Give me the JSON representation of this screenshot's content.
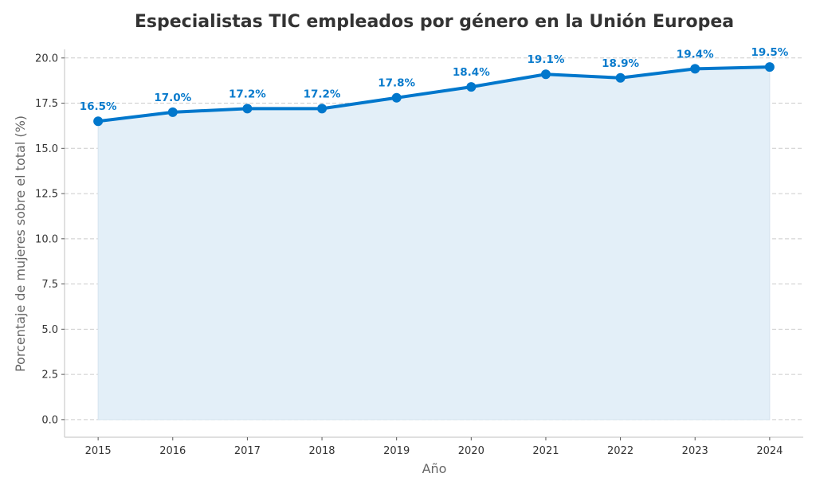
{
  "chart_data": {
    "type": "line",
    "title": "Especialistas TIC empleados por género en la Unión Europea",
    "xlabel": "Año",
    "ylabel": "Porcentaje de mujeres sobre el total (%)",
    "x": [
      2015,
      2016,
      2017,
      2018,
      2019,
      2020,
      2021,
      2022,
      2023,
      2024
    ],
    "values": [
      16.5,
      17.0,
      17.2,
      17.2,
      17.8,
      18.4,
      19.1,
      18.9,
      19.4,
      19.5
    ],
    "data_labels": [
      "16.5%",
      "17.0%",
      "17.2%",
      "17.2%",
      "17.8%",
      "18.4%",
      "19.1%",
      "18.9%",
      "19.4%",
      "19.5%"
    ],
    "xticks": [
      "2015",
      "2016",
      "2017",
      "2018",
      "2019",
      "2020",
      "2021",
      "2022",
      "2023",
      "2024"
    ],
    "yticks": [
      "0.0",
      "2.5",
      "5.0",
      "7.5",
      "10.0",
      "12.5",
      "15.0",
      "17.5",
      "20.0"
    ],
    "xlim": [
      2014.55,
      2024.45
    ],
    "ylim": [
      -0.975,
      20.475
    ],
    "grid": "horizontal dashed",
    "area_fill": true,
    "colors": {
      "line": "#0077CC",
      "fill": "#E3EFF8",
      "label": "#0A7BCC",
      "grid": "#CCCCCC"
    }
  }
}
